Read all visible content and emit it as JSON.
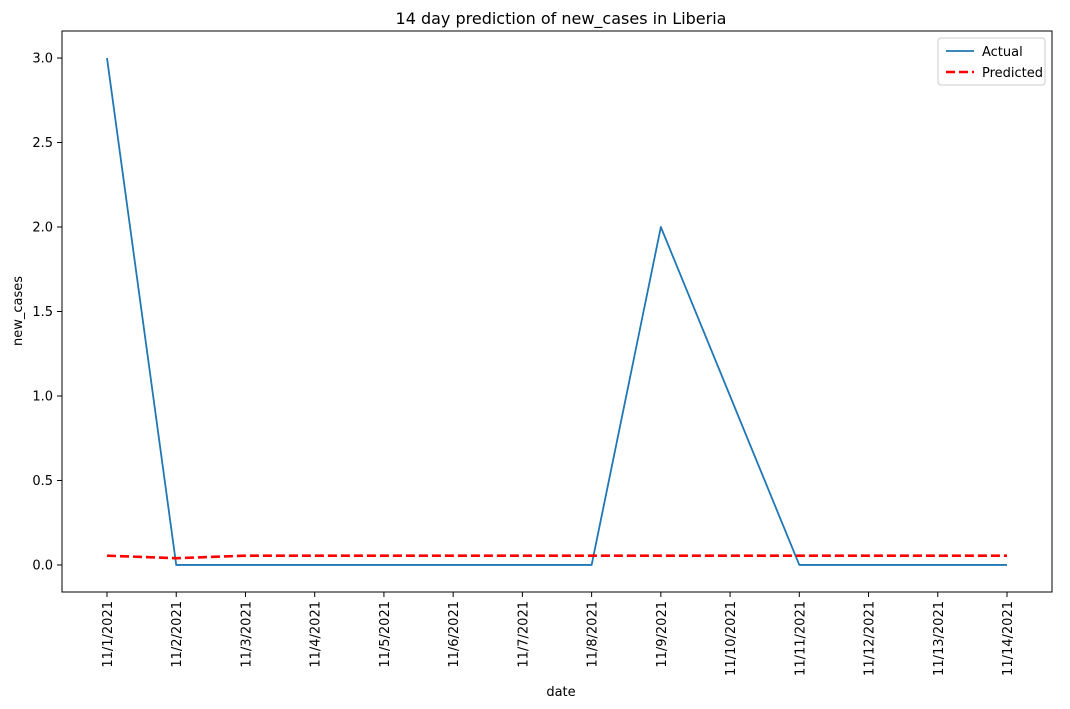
{
  "chart_data": {
    "type": "line",
    "title": "14 day prediction of new_cases in Liberia",
    "xlabel": "date",
    "ylabel": "new_cases",
    "categories": [
      "11/1/2021",
      "11/2/2021",
      "11/3/2021",
      "11/4/2021",
      "11/5/2021",
      "11/6/2021",
      "11/7/2021",
      "11/8/2021",
      "11/9/2021",
      "11/10/2021",
      "11/11/2021",
      "11/12/2021",
      "11/13/2021",
      "11/14/2021"
    ],
    "ylim": [
      -0.16,
      3.16
    ],
    "yticks": [
      0.0,
      0.5,
      1.0,
      1.5,
      2.0,
      2.5,
      3.0
    ],
    "ytick_labels": [
      "0.0",
      "0.5",
      "1.0",
      "1.5",
      "2.0",
      "2.5",
      "3.0"
    ],
    "grid": false,
    "legend_position": "top-right",
    "series": [
      {
        "name": "Actual",
        "color": "#1f77b4",
        "style": "solid",
        "values": [
          3,
          0,
          0,
          0,
          0,
          0,
          0,
          0,
          2,
          1,
          0,
          0,
          0,
          0
        ]
      },
      {
        "name": "Predicted",
        "color": "#ff0000",
        "style": "dashed",
        "values": [
          0.055,
          0.04,
          0.055,
          0.055,
          0.055,
          0.055,
          0.055,
          0.055,
          0.055,
          0.055,
          0.055,
          0.055,
          0.055,
          0.055
        ]
      }
    ]
  }
}
